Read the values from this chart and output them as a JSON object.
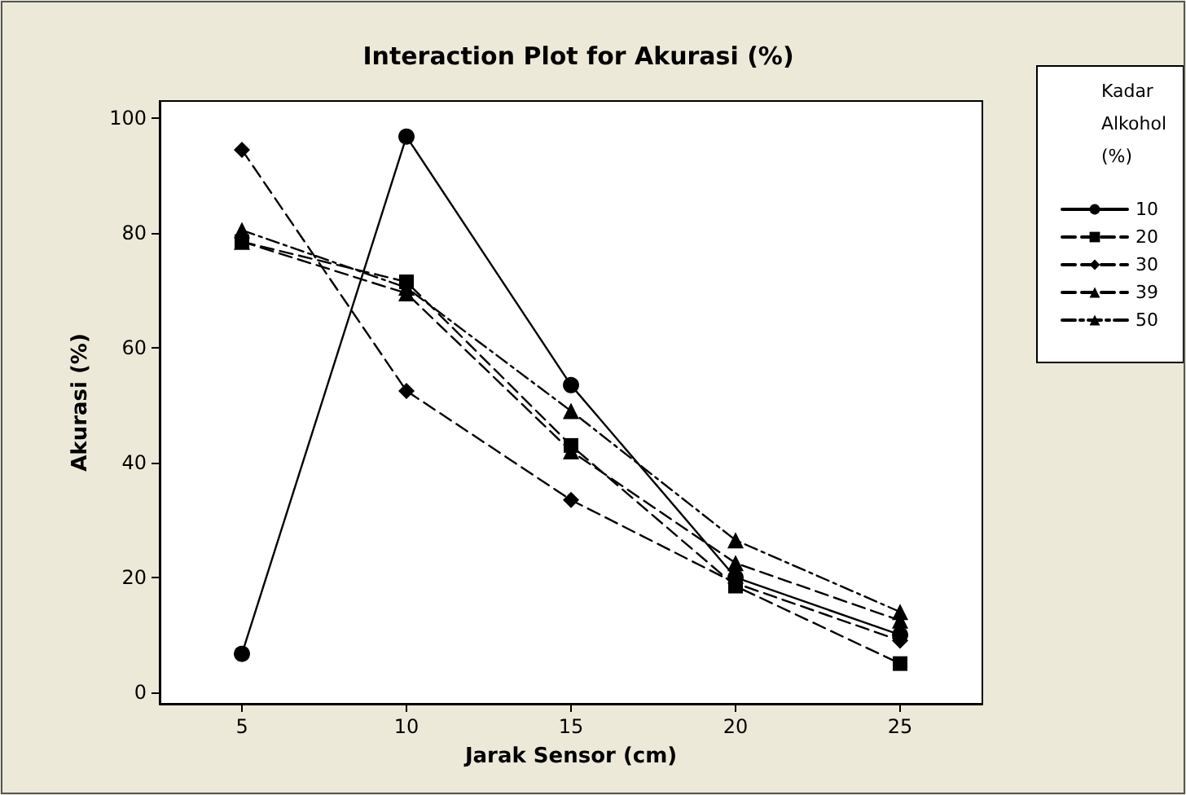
{
  "chart_data": {
    "type": "line",
    "title": "Interaction Plot for Akurasi (%)",
    "xlabel": "Jarak Sensor (cm)",
    "ylabel": "Akurasi (%)",
    "legend_title": "Kadar Alkohol (%)",
    "legend": "top right",
    "grid": false,
    "categories": [
      "5",
      "10",
      "15",
      "20",
      "25"
    ],
    "ylim": [
      -2,
      103
    ],
    "yticks": [
      0,
      20,
      40,
      60,
      80,
      100
    ],
    "series": [
      {
        "name": "10",
        "color": "#000000",
        "marker": "circle",
        "line_style": "solid",
        "values": [
          6.7,
          96.8,
          53.5,
          20,
          10
        ]
      },
      {
        "name": "20",
        "color": "#000000",
        "marker": "square",
        "line_style": "dashed",
        "values": [
          78.5,
          71.5,
          43,
          18.5,
          5
        ]
      },
      {
        "name": "30",
        "color": "#000000",
        "marker": "diamond",
        "line_style": "dashed",
        "values": [
          94.5,
          52.5,
          33.5,
          19,
          9
        ]
      },
      {
        "name": "39",
        "color": "#000000",
        "marker": "triangle",
        "line_style": "dashed",
        "values": [
          78.5,
          69.5,
          42,
          22.5,
          12.5
        ]
      },
      {
        "name": "50",
        "color": "#000000",
        "marker": "triangle",
        "line_style": "dotted",
        "values": [
          80.5,
          70.5,
          49,
          26.5,
          14
        ]
      }
    ]
  }
}
